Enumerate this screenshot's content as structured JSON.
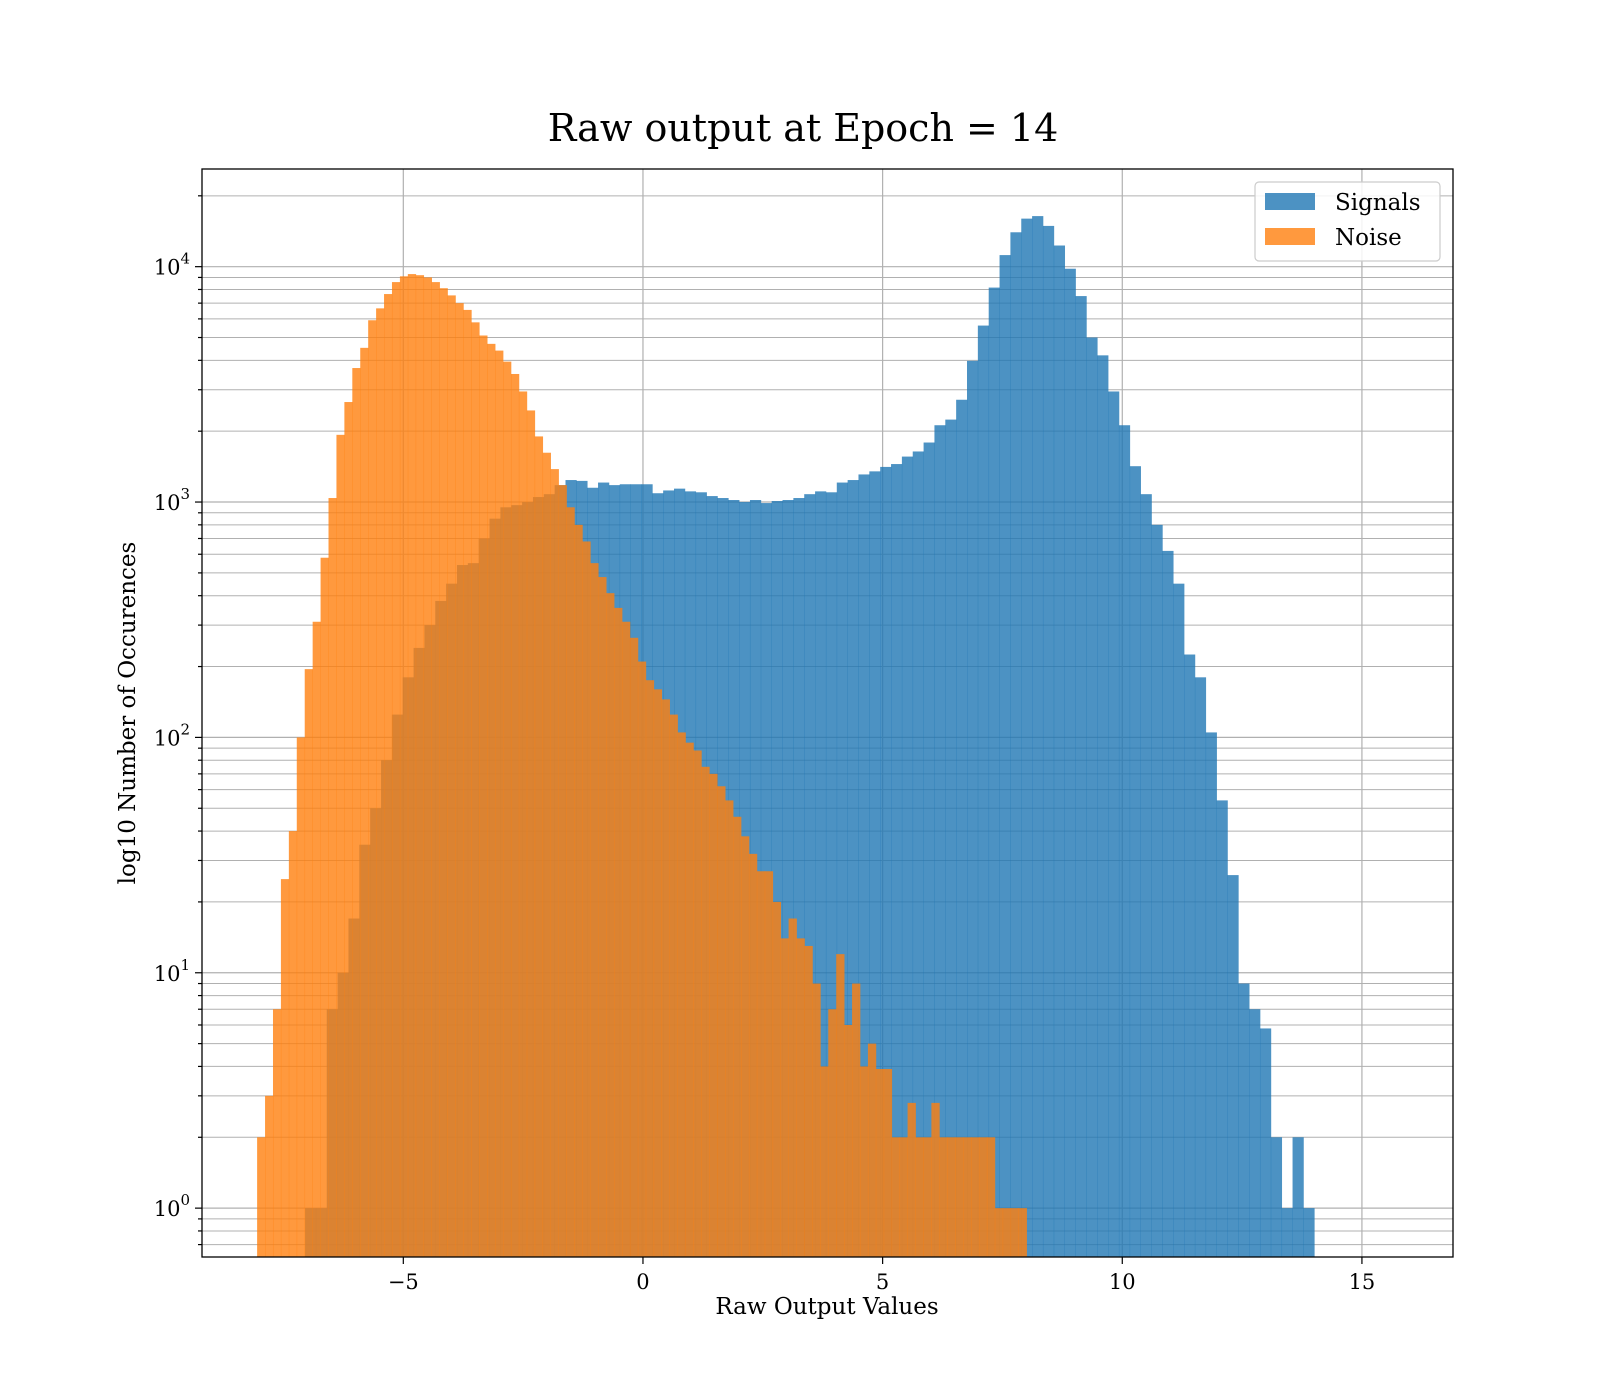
{
  "chart_data": {
    "type": "bar",
    "title": "Raw output at Epoch = 14",
    "xlabel": "Raw Output Values",
    "ylabel": "log10 Number of Occurences",
    "y_scale": "log",
    "xlim": [
      -9.2,
      16.9
    ],
    "ylim": [
      0.62,
      26000
    ],
    "x_ticks": [
      -5,
      0,
      5,
      10,
      15
    ],
    "x_tick_labels": [
      "−5",
      "0",
      "5",
      "10",
      "15"
    ],
    "y_ticks": [
      1,
      10,
      100,
      1000,
      10000
    ],
    "y_tick_labels": [
      {
        "base": "10",
        "exp": "0"
      },
      {
        "base": "10",
        "exp": "1"
      },
      {
        "base": "10",
        "exp": "2"
      },
      {
        "base": "10",
        "exp": "3"
      },
      {
        "base": "10",
        "exp": "4"
      }
    ],
    "grid": true,
    "legend_position": "top-right",
    "series": [
      {
        "name": "Signals",
        "color": "#1f77b4",
        "opacity": 0.8,
        "bin_start": -7.05,
        "bin_width": 0.2264,
        "values": [
          1,
          1,
          7,
          10,
          17,
          35,
          50,
          80,
          125,
          180,
          240,
          300,
          380,
          450,
          540,
          550,
          700,
          850,
          950,
          970,
          1000,
          1050,
          1080,
          1180,
          1240,
          1230,
          1150,
          1210,
          1180,
          1190,
          1190,
          1190,
          1090,
          1120,
          1140,
          1110,
          1100,
          1060,
          1040,
          1020,
          1000,
          1020,
          990,
          1010,
          1020,
          1040,
          1080,
          1110,
          1100,
          1210,
          1240,
          1310,
          1350,
          1410,
          1450,
          1560,
          1640,
          1790,
          2120,
          2240,
          2720,
          3980,
          5620,
          8150,
          11200,
          14000,
          16000,
          16400,
          14900,
          12300,
          9800,
          7500,
          5000,
          4200,
          2950,
          2120,
          1420,
          1080,
          800,
          620,
          450,
          225,
          180,
          105,
          54,
          26,
          9,
          7,
          5.8,
          2,
          1,
          2,
          1
        ]
      },
      {
        "name": "Noise",
        "color": "#ff7f0e",
        "opacity": 0.8,
        "bin_start": -8.05,
        "bin_width": 0.1655,
        "values": [
          2,
          3,
          7,
          25,
          40,
          100,
          195,
          310,
          580,
          1040,
          1930,
          2660,
          3710,
          4520,
          5920,
          6650,
          7650,
          8600,
          9100,
          9300,
          9200,
          9000,
          8600,
          8100,
          7550,
          7000,
          6550,
          5800,
          5100,
          4700,
          4400,
          3950,
          3500,
          2950,
          2450,
          1900,
          1620,
          1380,
          1180,
          950,
          800,
          680,
          550,
          480,
          410,
          355,
          310,
          265,
          210,
          175,
          160,
          145,
          125,
          105,
          95,
          88,
          75,
          70,
          62,
          54,
          46,
          38,
          32,
          27,
          27,
          20,
          14,
          17,
          14,
          13,
          9,
          4,
          7,
          12,
          6,
          9,
          4,
          5,
          3.9,
          3.9,
          2,
          2,
          2.8,
          2,
          2,
          2.8,
          2,
          2,
          2,
          2,
          2,
          2,
          2,
          1,
          1,
          1,
          1
        ]
      }
    ]
  }
}
